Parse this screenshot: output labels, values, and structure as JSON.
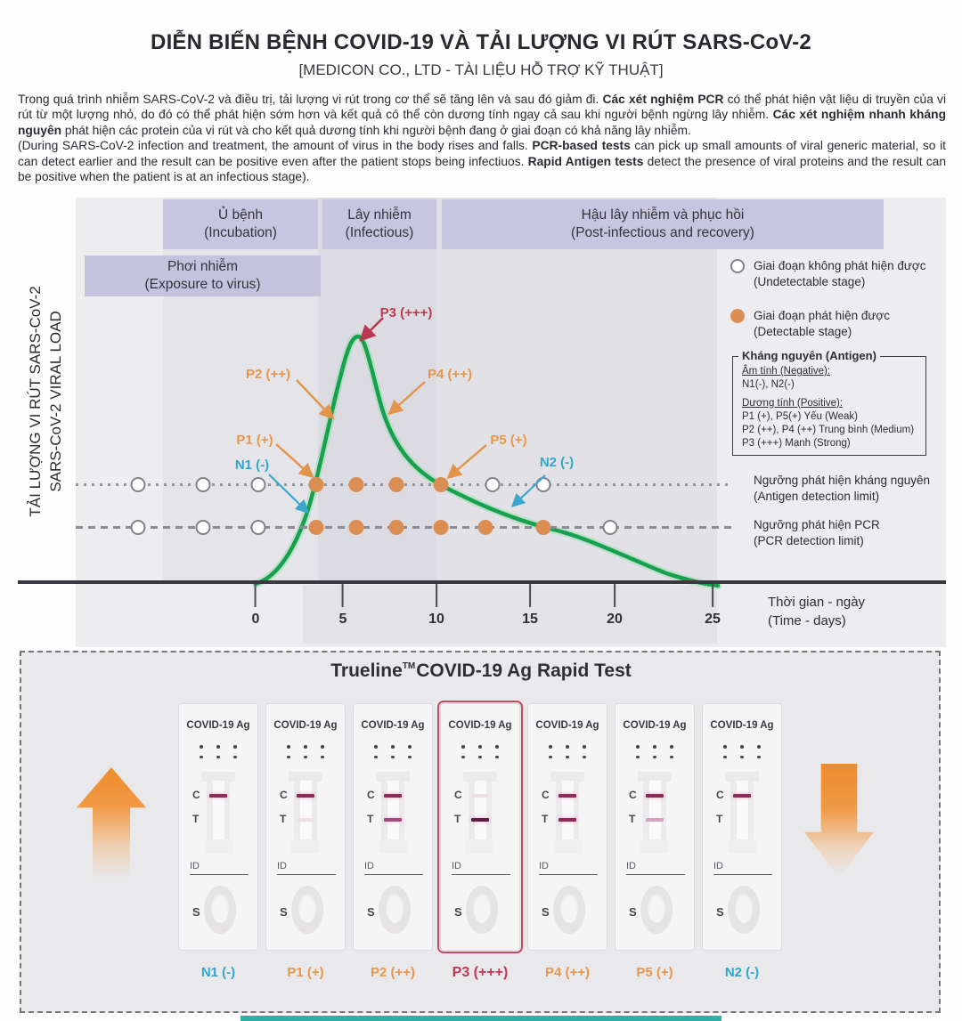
{
  "header": {
    "title": "DIỄN BIẾN BỆNH COVID-19 VÀ TẢI LƯỢNG VI RÚT SARS-CoV-2",
    "subtitle": "[MEDICON CO., LTD - TÀI LIỆU HỖ TRỢ KỸ THUẬT]"
  },
  "intro": {
    "vi_segments": [
      {
        "t": "Trong quá trình nhiễm SARS-CoV-2 và điều trị, tải lượng vi rút trong cơ thể sẽ tăng lên và sau đó giảm đi. ",
        "b": false
      },
      {
        "t": "Các xét nghiệm PCR",
        "b": true
      },
      {
        "t": " có thể phát hiện vật liệu di truyền của vi rút từ một lượng nhỏ, do đó có thể phát hiện sớm hơn và kết quả có thể còn dương tính ngay cả sau khi người bệnh ngừng lây nhiễm. ",
        "b": false
      },
      {
        "t": "Các xét nghiệm nhanh kháng nguyên",
        "b": true
      },
      {
        "t": " phát hiện các protein của vi rút và cho kết quả dương tính khi người bệnh đang ở giai đoạn có khả năng lây nhiễm.",
        "b": false
      }
    ],
    "en_segments": [
      {
        "t": "(During SARS-CoV-2 infection and treatment, the amount of virus in the body rises and falls. ",
        "b": false
      },
      {
        "t": "PCR-based tests",
        "b": true
      },
      {
        "t": " can pick up small amounts of viral generic material, so it can detect earlier and the result can be positive even after the patient stops being infectiuos. ",
        "b": false
      },
      {
        "t": "Rapid Antigen tests",
        "b": true
      },
      {
        "t": " detect the presence of viral proteins and the result can be positive when the patient is at an infectious stage).",
        "b": false
      }
    ]
  },
  "chart": {
    "y_axis_line1": "TẢI LƯỢNG VI RÚT SARS-CoV-2",
    "y_axis_line2": "SARS-CoV-2 VIRAL LOAD",
    "phases": [
      {
        "vi": "Ủ bệnh",
        "en": "(Incubation)"
      },
      {
        "vi": "Lây nhiễm",
        "en": "(Infectious)"
      },
      {
        "vi": "Hậu lây nhiễm và phục hồi",
        "en": "(Post-infectious and recovery)"
      }
    ],
    "exposure": {
      "vi": "Phơi nhiễm",
      "en": "(Exposure to virus)"
    },
    "legend": [
      {
        "vi": "Giai đoạn không phát hiện được",
        "en": "(Undetectable stage)",
        "marker": "open"
      },
      {
        "vi": "Giai đoạn phát hiện được",
        "en": "(Detectable stage)",
        "marker": "filled"
      }
    ],
    "antigen_box": {
      "title": "Kháng nguyên (Antigen)",
      "negative_heading": "Âm tính (Negative):",
      "negative_values": "N1(-), N2(-)",
      "positive_heading": "Dương tính (Positive):",
      "positive_lines": [
        "P1 (+), P5(+) Yếu (Weak)",
        "P2 (++), P4 (++) Trung bình (Medium)",
        "P3 (+++) Mạnh (Strong)"
      ]
    },
    "detection_labels": {
      "antigen_vi": "Ngưỡng phát hiện kháng nguyên",
      "antigen_en": "(Antigen detection limit)",
      "pcr_vi": "Ngưỡng phát hiện PCR",
      "pcr_en": "(PCR detection limit)"
    },
    "point_labels": [
      {
        "text": "N1 (-)",
        "color": "#2fa7cd"
      },
      {
        "text": "P1 (+)",
        "color": "#e8964a"
      },
      {
        "text": "P2 (++)",
        "color": "#e8964a"
      },
      {
        "text": "P3 (+++)",
        "color": "#c23850"
      },
      {
        "text": "P4 (++)",
        "color": "#e8964a"
      },
      {
        "text": "P5 (+)",
        "color": "#e8964a"
      },
      {
        "text": "N2 (-)",
        "color": "#2fa7cd"
      }
    ],
    "detection_rows": {
      "antigen": {
        "states": [
          "open",
          "open",
          "open",
          "filled",
          "filled",
          "filled",
          "filled",
          "open",
          "open"
        ]
      },
      "pcr": {
        "states": [
          "open",
          "open",
          "open",
          "filled",
          "filled",
          "filled",
          "filled",
          "filled",
          "filled",
          "open"
        ]
      }
    },
    "x_axis": {
      "ticks": [
        "0",
        "5",
        "10",
        "15",
        "20",
        "25"
      ],
      "label_vi": "Thời gian - ngày",
      "label_en": "(Time - days)"
    },
    "colors": {
      "curve_green": "#17a04d",
      "detectable_dot_orange": "#db8e54",
      "negative_label_teal": "#2fa7cd",
      "positive_label_orange": "#e8964a",
      "strong_label_red": "#c23850",
      "phase_band_purple": "#c8c5e0"
    }
  },
  "rapid_test": {
    "brand": "Trueline",
    "tm": "TM",
    "title_rest": "COVID-19 Ag Rapid Test",
    "cassette_title": "COVID-19 Ag",
    "c_label": "C",
    "t_label": "T",
    "id_label": "ID",
    "s_label": "S",
    "cassettes": [
      {
        "result": "N1 (-)",
        "c": "strong",
        "t": "none",
        "color": "#2fa7cd",
        "highlight": false
      },
      {
        "result": "P1 (+)",
        "c": "strong",
        "t": "faint",
        "color": "#e8964a",
        "highlight": false
      },
      {
        "result": "P2 (++)",
        "c": "strong",
        "t": "medium",
        "color": "#e8964a",
        "highlight": false
      },
      {
        "result": "P3 (+++)",
        "c": "faint",
        "t": "dark",
        "color": "#c23850",
        "highlight": true
      },
      {
        "result": "P4 (++)",
        "c": "strong",
        "t": "strong",
        "color": "#e8964a",
        "highlight": false
      },
      {
        "result": "P5 (+)",
        "c": "strong",
        "t": "light",
        "color": "#e8964a",
        "highlight": false
      },
      {
        "result": "N2 (-)",
        "c": "strong",
        "t": "none",
        "color": "#2fa7cd",
        "highlight": false
      }
    ]
  },
  "chart_data": {
    "type": "line",
    "title": "Tải lượng vi rút SARS-CoV-2 theo thời gian (SARS-CoV-2 viral load over time)",
    "xlabel": "Thời gian - ngày (Time - days)",
    "ylabel": "TẢI LƯỢNG VI RÚT SARS-CoV-2 / SARS-CoV-2 VIRAL LOAD (relative)",
    "x_ticks": [
      0,
      5,
      10,
      15,
      20,
      25
    ],
    "grid": false,
    "legend_position": "right",
    "series": [
      {
        "name": "SARS-CoV-2 viral load",
        "x": [
          0,
          2,
          3,
          3.3,
          4,
          5,
          5.6,
          6.5,
          7.7,
          9,
          10.1,
          12,
          14,
          16,
          18,
          20,
          22,
          25
        ],
        "y": [
          0,
          5,
          20,
          40,
          68,
          95,
          100,
          82,
          62,
          50,
          40,
          30,
          24,
          20,
          14,
          9,
          5,
          1
        ]
      }
    ],
    "reference_lines": [
      {
        "name": "Ngưỡng phát hiện kháng nguyên (Antigen detection limit)",
        "y": 40
      },
      {
        "name": "Ngưỡng phát hiện PCR (PCR detection limit)",
        "y": 22
      }
    ],
    "phases": [
      {
        "label": "Ủ bệnh (Incubation)",
        "x_range": [
          0,
          3.3
        ]
      },
      {
        "label": "Lây nhiễm (Infectious)",
        "x_range": [
          3.3,
          10
        ]
      },
      {
        "label": "Hậu lây nhiễm và phục hồi (Post-infectious and recovery)",
        "x_range": [
          10,
          25
        ]
      }
    ],
    "samples": [
      {
        "id": "N1 (-)",
        "antigen": "negative",
        "pcr": "negative"
      },
      {
        "id": "P1 (+)",
        "antigen": "weak positive",
        "pcr": "positive"
      },
      {
        "id": "P2 (++)",
        "antigen": "medium positive",
        "pcr": "positive"
      },
      {
        "id": "P3 (+++)",
        "antigen": "strong positive",
        "pcr": "positive"
      },
      {
        "id": "P4 (++)",
        "antigen": "medium positive",
        "pcr": "positive"
      },
      {
        "id": "P5 (+)",
        "antigen": "weak positive",
        "pcr": "positive"
      },
      {
        "id": "N2 (-)",
        "antigen": "negative",
        "pcr": "positive"
      }
    ]
  }
}
